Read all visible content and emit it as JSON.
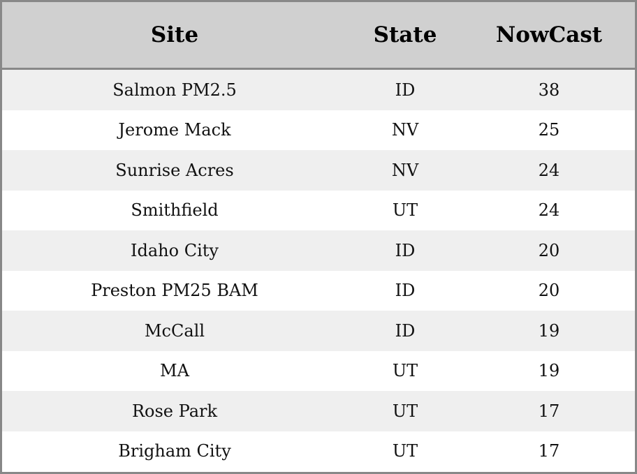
{
  "table": {
    "columns": [
      "Site",
      "State",
      "NowCast"
    ],
    "rows": [
      [
        "Salmon PM2.5",
        "ID",
        38
      ],
      [
        "Jerome Mack",
        "NV",
        25
      ],
      [
        "Sunrise Acres",
        "NV",
        24
      ],
      [
        "Smithfield",
        "UT",
        24
      ],
      [
        "Idaho City",
        "ID",
        20
      ],
      [
        "Preston PM25 BAM",
        "ID",
        20
      ],
      [
        "McCall",
        "ID",
        19
      ],
      [
        "MA",
        "UT",
        19
      ],
      [
        "Rose Park",
        "UT",
        17
      ],
      [
        "Brigham City",
        "UT",
        17
      ]
    ]
  }
}
